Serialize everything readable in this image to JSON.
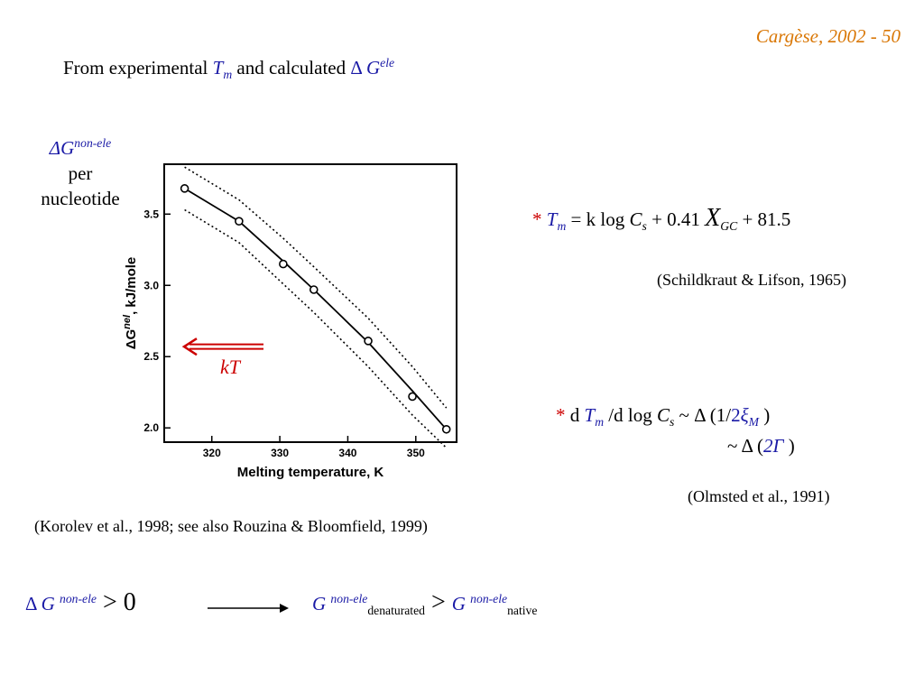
{
  "slide_label": "Cargèse, 2002 - 50",
  "heading": {
    "prefix": "From experimental ",
    "tm_symbol": "T",
    "tm_sub": "m",
    "middle": " and calculated ",
    "delta": "Δ",
    "g_symbol": "G",
    "g_sup": "ele"
  },
  "left_label": {
    "delta_g": "ΔG",
    "superscript": "non-ele",
    "line2": "per",
    "line3": "nucleotide"
  },
  "arrow_label": "kT",
  "formula_tm": {
    "star": "*",
    "tm": "T",
    "tm_sub": "m",
    "eq": " = k log ",
    "cs": "C",
    "cs_sub": "s",
    "plus": " + 0.41 ",
    "x": "X",
    "x_sub": "GC",
    "tail": " + 81.5"
  },
  "citation_schildkraut": "(Schildkraut & Lifson, 1965)",
  "formula_dtm": {
    "star": "*",
    "d": " d ",
    "tm": "T",
    "tm_sub": "m",
    "mid": " /d log ",
    "cs": "C",
    "cs_sub": "s",
    "tilde": " ~ Δ (1/",
    "two": "2",
    "xi": "ξ",
    "xi_sub": "M",
    "close": " )"
  },
  "formula_gamma": {
    "prefix": "~ Δ (",
    "two_gamma": "2Γ",
    "close": " )"
  },
  "citation_olmsted": "(Olmsted et al., 1991)",
  "citation_korolev": "(Korolev et al., 1998; see also Rouzina & Bloomfield, 1999)",
  "bottom": {
    "delta": "Δ ",
    "g": "G",
    "sup": "non-ele",
    "gt_zero": " > 0",
    "g2": "G",
    "sup2": "non-ele",
    "sub2": "denaturated",
    "gt": " > ",
    "g3": "G",
    "sup3": "non-ele",
    "sub3": "native"
  },
  "colors": {
    "accent_blue": "#1a1aa6",
    "slide_label_orange": "#d97706",
    "arrow_red": "#cc0000"
  },
  "chart_data": {
    "type": "scatter",
    "xlabel": "Melting temperature, K",
    "ylabel": "ΔG",
    "ylabel_sup": "nel",
    "ylabel_units": ", kJ/mole",
    "xlim": [
      313,
      356
    ],
    "ylim": [
      1.9,
      3.85
    ],
    "x_ticks": [
      320,
      330,
      340,
      350
    ],
    "y_ticks": [
      2.0,
      2.5,
      3.0,
      3.5
    ],
    "y_tick_labels": [
      "2.0",
      "2.5",
      "3.0",
      "3.5"
    ],
    "x_tick_labels": [
      "320",
      "330",
      "340",
      "350"
    ],
    "points": [
      {
        "x": 316,
        "y": 3.68
      },
      {
        "x": 324,
        "y": 3.45
      },
      {
        "x": 330.5,
        "y": 3.15
      },
      {
        "x": 335,
        "y": 2.97
      },
      {
        "x": 343,
        "y": 2.61
      },
      {
        "x": 349.5,
        "y": 2.22
      },
      {
        "x": 354.5,
        "y": 1.99
      }
    ],
    "fit_line": [
      {
        "x": 316,
        "y": 3.68
      },
      {
        "x": 324,
        "y": 3.45
      },
      {
        "x": 330.5,
        "y": 3.17
      },
      {
        "x": 335,
        "y": 2.97
      },
      {
        "x": 343,
        "y": 2.6
      },
      {
        "x": 349.5,
        "y": 2.26
      },
      {
        "x": 354.5,
        "y": 1.99
      }
    ],
    "upper_band": [
      {
        "x": 316,
        "y": 3.83
      },
      {
        "x": 324,
        "y": 3.6
      },
      {
        "x": 330.5,
        "y": 3.33
      },
      {
        "x": 335,
        "y": 3.13
      },
      {
        "x": 343,
        "y": 2.77
      },
      {
        "x": 349.5,
        "y": 2.43
      },
      {
        "x": 354.5,
        "y": 2.14
      }
    ],
    "lower_band": [
      {
        "x": 316,
        "y": 3.53
      },
      {
        "x": 324,
        "y": 3.3
      },
      {
        "x": 330.5,
        "y": 3.01
      },
      {
        "x": 335,
        "y": 2.81
      },
      {
        "x": 343,
        "y": 2.43
      },
      {
        "x": 349.5,
        "y": 2.09
      },
      {
        "x": 354.5,
        "y": 1.86
      }
    ],
    "arrow_y": 2.57,
    "grid": false
  }
}
